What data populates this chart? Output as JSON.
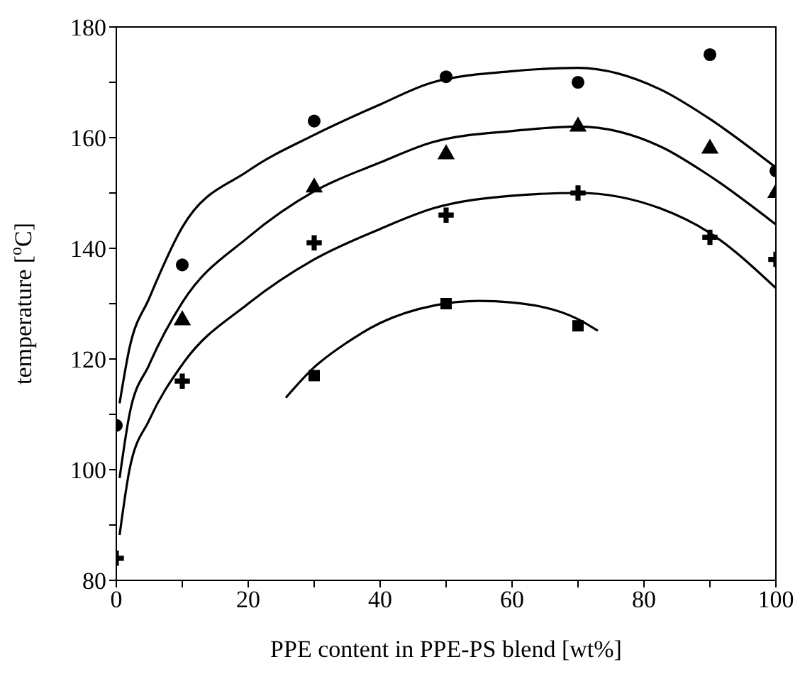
{
  "chart_data": {
    "type": "scatter",
    "xlabel": "PPE content in PPE-PS blend [wt%]",
    "ylabel": "temperature [$^{o}$C]",
    "xlim": [
      0,
      100
    ],
    "ylim": [
      80,
      180
    ],
    "xticks": [
      0,
      {
        "value": 10,
        "label": null
      },
      20,
      {
        "value": 30,
        "label": null
      },
      40,
      {
        "value": 50,
        "label": null
      },
      60,
      {
        "value": 70,
        "label": null
      },
      80,
      {
        "value": 90,
        "label": null
      },
      100
    ],
    "yticks": [
      80,
      {
        "value": 90,
        "label": null
      },
      100,
      {
        "value": 110,
        "label": null
      },
      120,
      {
        "value": 130,
        "label": null
      },
      140,
      {
        "value": 150,
        "label": null
      },
      160,
      {
        "value": 170,
        "label": null
      },
      180
    ],
    "series": [
      {
        "marker": "circle",
        "color": "#000000",
        "x": [
          0,
          10,
          30,
          50,
          70,
          90,
          100
        ],
        "values": [
          108,
          137,
          163,
          171,
          170,
          175,
          154
        ]
      },
      {
        "marker": "triangle",
        "color": "#000000",
        "x": [
          10,
          30,
          50,
          70,
          90,
          100
        ],
        "values": [
          127,
          151,
          157,
          162,
          158,
          150
        ]
      },
      {
        "marker": "cross",
        "color": "#000000",
        "x": [
          0,
          10,
          30,
          50,
          70,
          90,
          100
        ],
        "values": [
          84,
          116,
          141,
          146,
          150,
          142,
          138
        ]
      },
      {
        "marker": "square",
        "color": "#000000",
        "x": [
          30,
          50,
          70
        ],
        "values": [
          117,
          130,
          126
        ]
      },
      {
        "type": "line",
        "marker": "none",
        "line_style": "solid",
        "color": "#000000",
        "x": [
          0.5,
          2,
          5,
          10,
          20,
          30,
          40,
          48,
          60,
          70,
          82.5,
          89.7,
          100
        ],
        "values": [
          112,
          122,
          131,
          143.8,
          154,
          160.5,
          166,
          170,
          172,
          172.6,
          168.7,
          163.6,
          154.6
        ]
      },
      {
        "type": "line",
        "marker": "none",
        "line_style": "solid",
        "color": "#000000",
        "x": [
          0.5,
          2,
          5,
          10,
          20,
          30,
          40,
          48,
          60,
          70,
          82.5,
          89.7,
          100
        ],
        "values": [
          98.5,
          110,
          119,
          130.2,
          142,
          150.3,
          155.5,
          159.2,
          161.2,
          162,
          158.4,
          153.3,
          144.3
        ]
      },
      {
        "type": "line",
        "marker": "none",
        "line_style": "solid",
        "color": "#000000",
        "x": [
          0.5,
          2,
          5,
          10,
          20,
          30,
          40,
          48,
          60,
          70,
          82.5,
          89.7,
          100
        ],
        "values": [
          88.2,
          100,
          109,
          119,
          130,
          138,
          143.5,
          147.2,
          149.5,
          150,
          147.2,
          143,
          132.8
        ]
      },
      {
        "type": "line",
        "marker": "none",
        "line_style": "solid",
        "color": "#000000",
        "x": [
          25.7,
          30,
          35,
          40,
          48.3,
          55,
          60,
          70,
          73
        ],
        "values": [
          113,
          118.5,
          123,
          126.5,
          129.7,
          130.5,
          130.2,
          127.2,
          125.1
        ]
      }
    ]
  }
}
